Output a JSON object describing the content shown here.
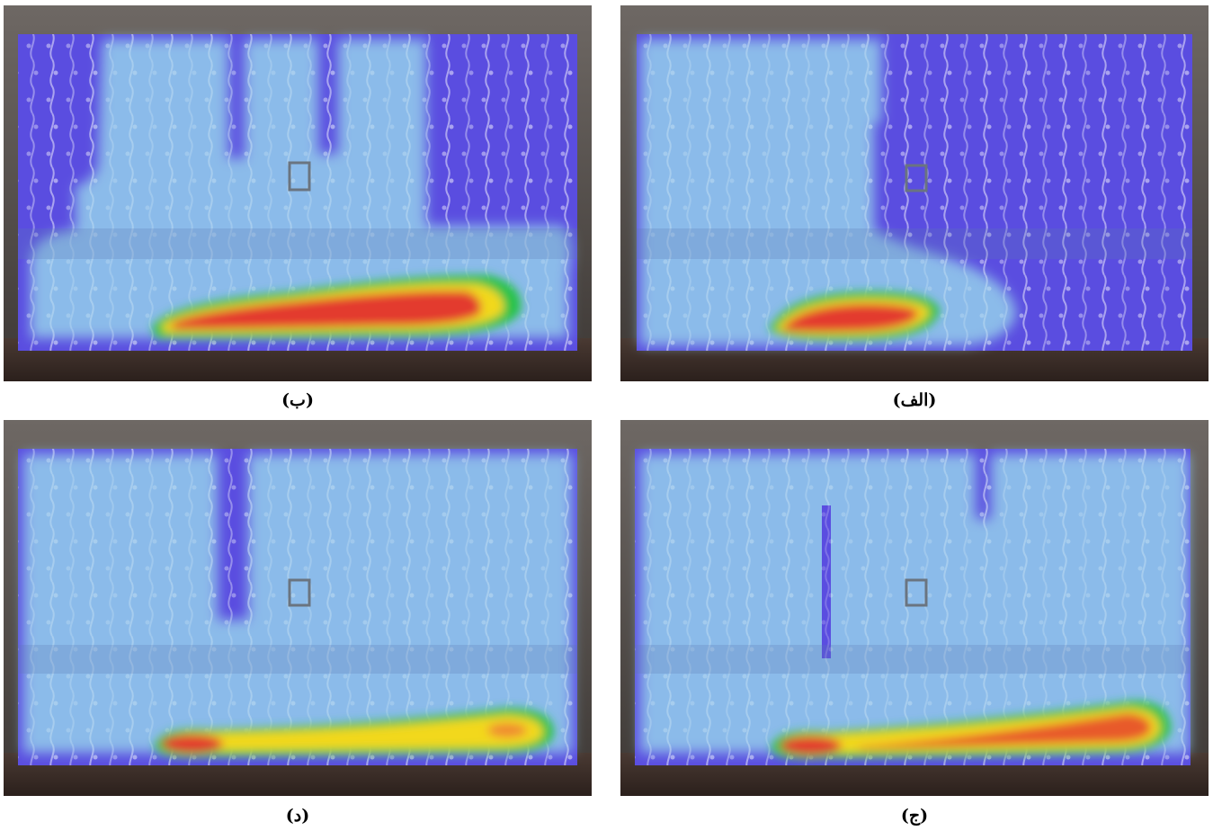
{
  "figure": {
    "panels": [
      {
        "id": "b",
        "caption": "(ب)"
      },
      {
        "id": "alef",
        "caption": "(الف)"
      },
      {
        "id": "dal",
        "caption": "(د)"
      },
      {
        "id": "jim",
        "caption": "(ج)"
      }
    ],
    "colors": {
      "wall_covered": "#8fc4ea",
      "wall_uncovered": "#5a4de0",
      "hot_core": "#e33b2e",
      "warm": "#f2d81e",
      "green": "#27c24a",
      "room_frame": "#2a2522"
    }
  }
}
